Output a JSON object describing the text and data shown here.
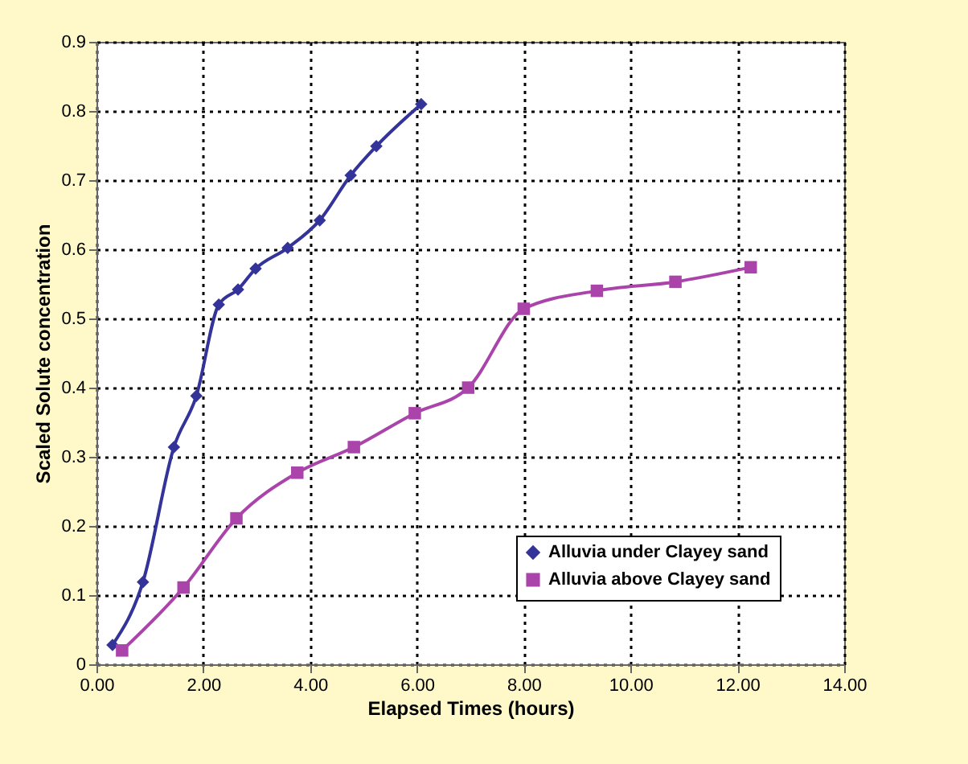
{
  "chart_data": {
    "type": "line",
    "xlabel": "Elapsed Times (hours)",
    "ylabel": "Scaled Solute concentration",
    "xlim": [
      0,
      14
    ],
    "xticks": [
      {
        "value": 0,
        "label": "0.00"
      },
      {
        "value": 2,
        "label": "2.00"
      },
      {
        "value": 4,
        "label": "4.00"
      },
      {
        "value": 6,
        "label": "6.00"
      },
      {
        "value": 8,
        "label": "8.00"
      },
      {
        "value": 10,
        "label": "10.00"
      },
      {
        "value": 12,
        "label": "12.00"
      },
      {
        "value": 14,
        "label": "14.00"
      }
    ],
    "ylim": [
      0,
      0.9
    ],
    "yticks": [
      0,
      0.1,
      0.2,
      0.3,
      0.4,
      0.5,
      0.6,
      0.7,
      0.8,
      0.9
    ],
    "grid": true,
    "legend": "bottom right",
    "series": [
      {
        "name": "Alluvia under Clayey sand",
        "color": "#333399",
        "marker": "diamond",
        "x": [
          0.3,
          0.87,
          1.45,
          1.87,
          2.29,
          2.65,
          2.98,
          3.58,
          4.18,
          4.76,
          5.24,
          6.08
        ],
        "values": [
          0.028,
          0.119,
          0.314,
          0.388,
          0.52,
          0.542,
          0.572,
          0.602,
          0.642,
          0.707,
          0.749,
          0.81
        ]
      },
      {
        "name": "Alluvia above Clayey sand",
        "color": "#aa44aa",
        "marker": "square",
        "x": [
          0.48,
          1.63,
          2.62,
          3.76,
          4.82,
          5.96,
          6.96,
          8.0,
          9.37,
          10.84,
          12.25
        ],
        "values": [
          0.02,
          0.111,
          0.211,
          0.277,
          0.314,
          0.363,
          0.4,
          0.514,
          0.54,
          0.553,
          0.574
        ]
      }
    ]
  }
}
